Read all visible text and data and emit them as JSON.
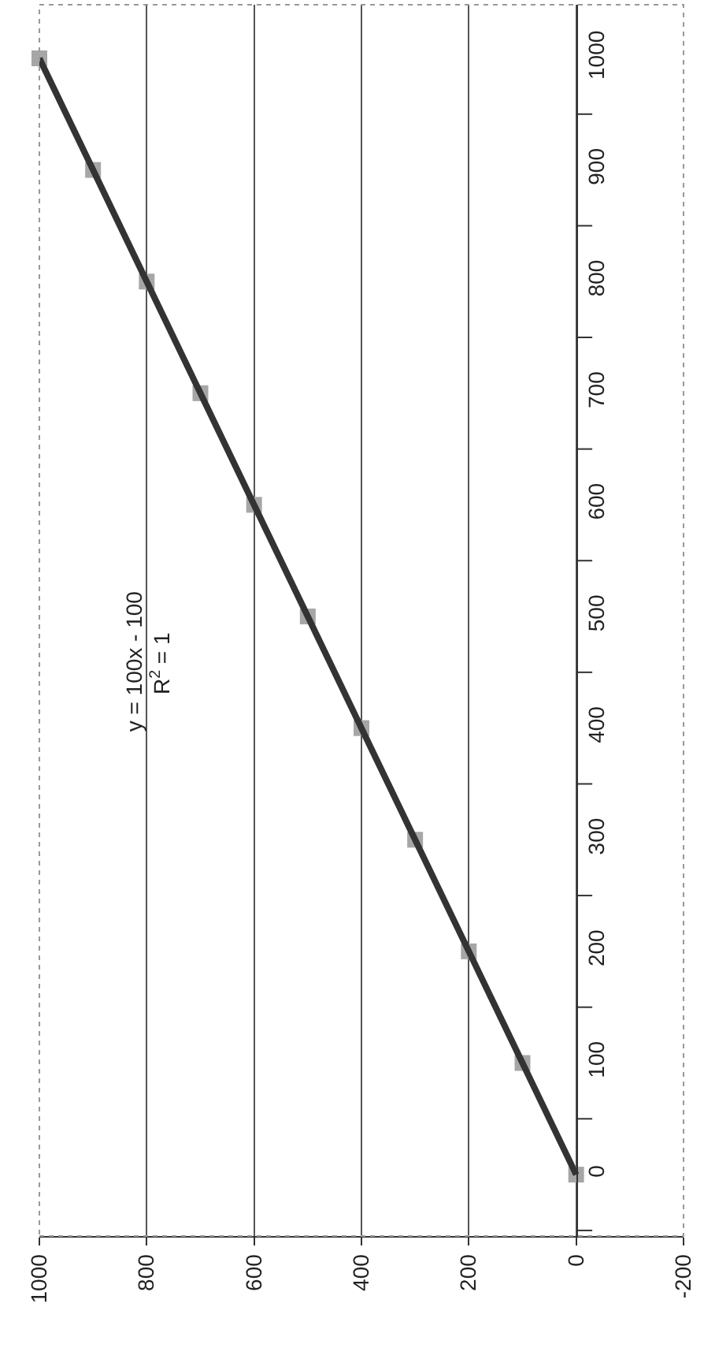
{
  "chart_data": {
    "type": "scatter",
    "series": [
      {
        "color": "#a6a6a6",
        "marker": "square",
        "x": [
          0,
          100,
          200,
          300,
          400,
          500,
          600,
          700,
          800,
          900,
          1000
        ],
        "values": [
          0,
          100,
          200,
          300,
          400,
          500,
          600,
          700,
          800,
          900,
          1000
        ]
      },
      {
        "type": "line",
        "color": "#333333",
        "marker": "none",
        "line_style": "solid",
        "x": [
          0,
          100,
          200,
          300,
          400,
          500,
          600,
          700,
          800,
          900,
          1000
        ],
        "values": [
          0,
          100,
          200,
          300,
          400,
          500,
          600,
          700,
          800,
          900,
          1000
        ]
      }
    ],
    "xlim": [
      1000,
      -200
    ],
    "xticks": [
      1000,
      800,
      600,
      400,
      200,
      0,
      -200
    ],
    "ylim": [
      -55,
      1048
    ],
    "yticks": [
      {
        "value": -50,
        "label": null
      },
      0,
      {
        "value": 50,
        "label": null
      },
      100,
      {
        "value": 150,
        "label": null
      },
      200,
      {
        "value": 250,
        "label": null
      },
      300,
      {
        "value": 350,
        "label": null
      },
      400,
      {
        "value": 450,
        "label": null
      },
      500,
      {
        "value": 550,
        "label": null
      },
      600,
      {
        "value": 650,
        "label": null
      },
      700,
      {
        "value": 750,
        "label": null
      },
      800,
      {
        "value": 850,
        "label": null
      },
      900,
      {
        "value": 950,
        "label": null
      },
      1000
    ],
    "grid": "x",
    "annotations": [
      "y = 100x - 100",
      "R$^{2}$ = 1"
    ]
  }
}
